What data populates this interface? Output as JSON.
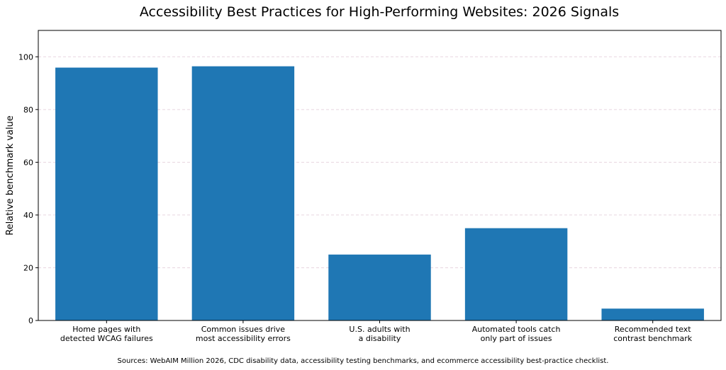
{
  "chart_data": {
    "type": "bar",
    "title": "Accessibility Best Practices for High-Performing Websites: 2026 Signals",
    "xlabel": "",
    "ylabel": "Relative benchmark value",
    "categories": [
      [
        "Home pages with",
        "detected WCAG failures"
      ],
      [
        "Common issues drive",
        "most accessibility errors"
      ],
      [
        "U.S. adults with",
        "a disability"
      ],
      [
        "Automated tools catch",
        "only part of issues"
      ],
      [
        "Recommended text",
        "contrast benchmark"
      ]
    ],
    "values": [
      95.9,
      96.4,
      25,
      35,
      4.5
    ],
    "ylim": [
      0,
      110
    ],
    "yticks": [
      0,
      20,
      40,
      60,
      80,
      100
    ],
    "grid": "horizontal dashed",
    "bar_color": "#1f77b4",
    "grid_color": "#e8d5e0"
  },
  "footer": {
    "source": "Sources: WebAIM Million 2026, CDC disability data, accessibility testing benchmarks, and ecommerce accessibility best-practice checklist."
  }
}
